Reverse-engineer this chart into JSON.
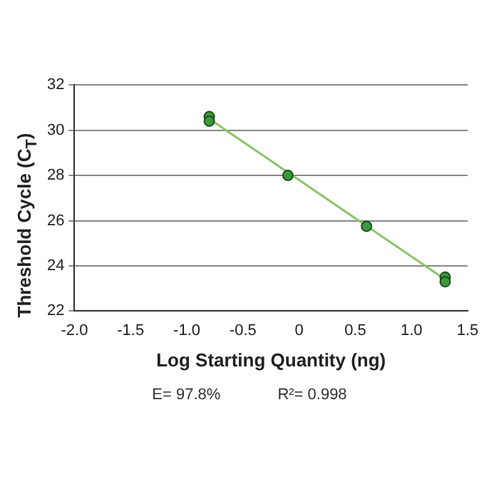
{
  "chart_data": {
    "type": "scatter",
    "xlabel": "Log Starting Quantity (ng)",
    "ylabel": "Threshold Cycle (C$_{T}$)",
    "series": [
      {
        "marker": "circle",
        "color": "#3a9a3a",
        "x": [
          -0.8,
          -0.8,
          -0.1,
          0.6,
          1.3,
          1.3
        ],
        "values": [
          30.6,
          30.4,
          28.0,
          25.75,
          23.5,
          23.3
        ]
      },
      {
        "type": "line",
        "marker": "none",
        "color": "#8cc46a",
        "x": [
          -0.8,
          1.3
        ],
        "values": [
          30.5,
          23.4
        ]
      }
    ],
    "xlim": [
      -2.0,
      1.5
    ],
    "xticks": [
      {
        "value": -2,
        "label": "-2.0"
      },
      -1.5,
      {
        "value": -1,
        "label": "-1.0"
      },
      -0.5,
      0,
      0.5,
      {
        "value": 1,
        "label": "1.0"
      },
      1.5
    ],
    "ylim": [
      22,
      32
    ],
    "yticks": [
      22,
      24,
      26,
      28,
      30,
      32
    ],
    "grid": "y",
    "legend": false,
    "annotations": [
      "E= 97.8%",
      "R²= 0.998"
    ]
  }
}
